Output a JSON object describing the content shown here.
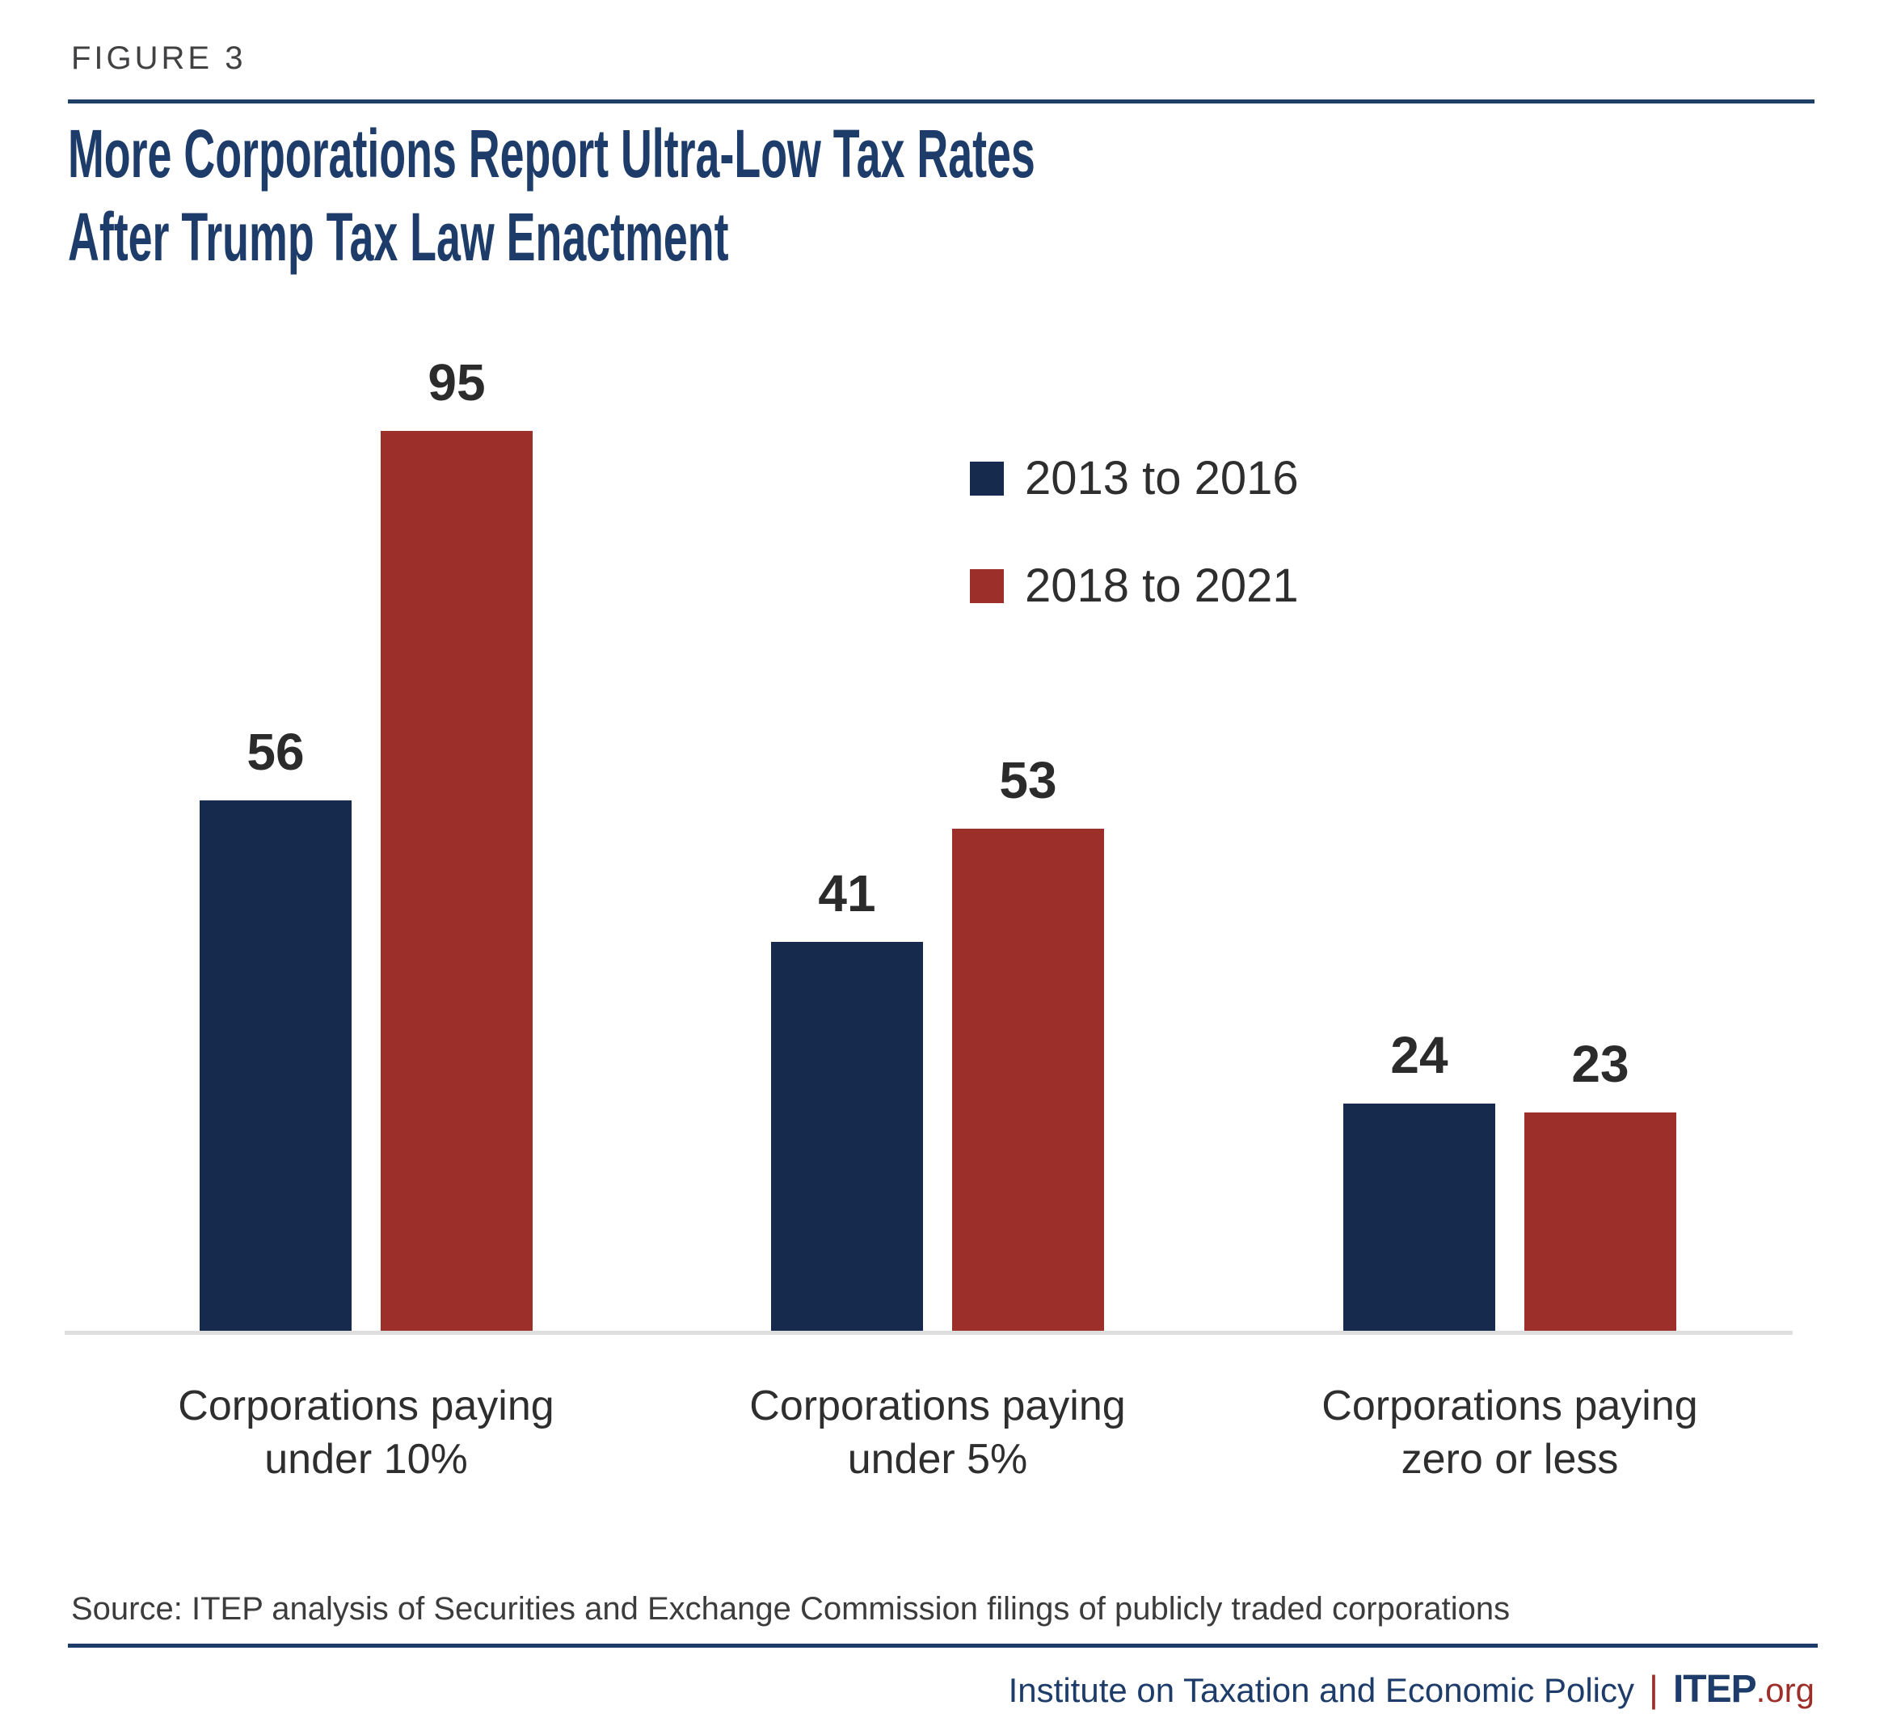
{
  "figure": {
    "label": "FIGURE 3"
  },
  "title": {
    "line1": "More Corporations Report Ultra-Low Tax Rates",
    "line2": "After Trump Tax Law Enactment"
  },
  "chart_data": {
    "type": "bar",
    "title": "More Corporations Report Ultra-Low Tax Rates After Trump Tax Law Enactment",
    "categories": [
      "Corporations paying under 10%",
      "Corporations paying under 5%",
      "Corporations paying zero or less"
    ],
    "category_label_lines": [
      [
        "Corporations paying",
        "under 10%"
      ],
      [
        "Corporations paying",
        "under 5%"
      ],
      [
        "Corporations paying",
        "zero or less"
      ]
    ],
    "series": [
      {
        "name": "2013 to 2016",
        "color": "#152a4c",
        "values": [
          56,
          41,
          24
        ]
      },
      {
        "name": "2018 to 2021",
        "color": "#9d2f2a",
        "values": [
          95,
          53,
          23
        ]
      }
    ],
    "value_labels": [
      [
        56,
        41,
        24
      ],
      [
        95,
        53,
        23
      ]
    ],
    "ylim": [
      0,
      95
    ],
    "grid": false,
    "y_axis_visible": false,
    "x_baseline_visible": true,
    "legend_position": "upper-right"
  },
  "source": "Source: ITEP analysis of Securities and Exchange Commission filings of publicly traded corporations",
  "footer": {
    "org": "Institute on Taxation and Economic Policy",
    "separator": "|",
    "brand": "ITEP",
    "brand_suffix": ".org"
  },
  "colors": {
    "navy_bar": "#152a4c",
    "red_bar": "#9d2f2a",
    "title_navy": "#1d3c69",
    "figure_label_gray": "#414042",
    "top_rule_navy": "#1f4066",
    "bottom_rule_navy": "#1d3c69",
    "baseline_gray": "#dedede",
    "text_dark": "#2e2e2e",
    "value_label_dark": "#2b2b2b",
    "source_gray": "#3c3c3c",
    "footer_navy": "#1d3c69",
    "footer_maroon": "#9d2f2a"
  }
}
